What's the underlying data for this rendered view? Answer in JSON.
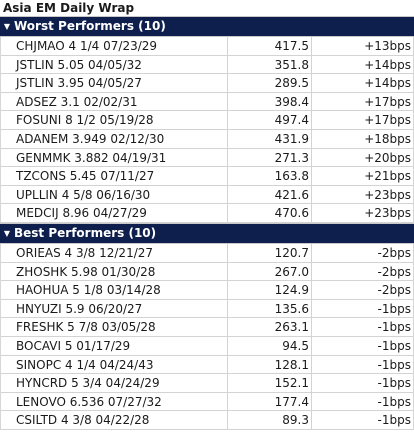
{
  "title": "Asia EM Daily Wrap",
  "sections": [
    {
      "label": "Worst Performers (10)",
      "rows": [
        {
          "name": "CHJMAO 4 1/4 07/23/29",
          "price": "417.5",
          "change": "+13bps"
        },
        {
          "name": "JSTLIN 5.05 04/05/32",
          "price": "351.8",
          "change": "+14bps"
        },
        {
          "name": "JSTLIN 3.95 04/05/27",
          "price": "289.5",
          "change": "+14bps"
        },
        {
          "name": "ADSEZ 3.1 02/02/31",
          "price": "398.4",
          "change": "+17bps"
        },
        {
          "name": "FOSUNI 8 1/2 05/19/28",
          "price": "497.4",
          "change": "+17bps"
        },
        {
          "name": "ADANEM 3.949 02/12/30",
          "price": "431.9",
          "change": "+18bps"
        },
        {
          "name": "GENMMK 3.882 04/19/31",
          "price": "271.3",
          "change": "+20bps"
        },
        {
          "name": "TZCONS 5.45 07/11/27",
          "price": "163.8",
          "change": "+21bps"
        },
        {
          "name": "UPLLIN 4 5/8 06/16/30",
          "price": "421.6",
          "change": "+23bps"
        },
        {
          "name": "MEDCIJ 8.96 04/27/29",
          "price": "470.6",
          "change": "+23bps"
        }
      ]
    },
    {
      "label": "Best Performers (10)",
      "rows": [
        {
          "name": "ORIEAS 4 3/8 12/21/27",
          "price": "120.7",
          "change": "-2bps"
        },
        {
          "name": "ZHOSHK 5.98 01/30/28",
          "price": "267.0",
          "change": "-2bps"
        },
        {
          "name": "HAOHUA 5 1/8 03/14/28",
          "price": "124.9",
          "change": "-2bps"
        },
        {
          "name": "HNYUZI 5.9 06/20/27",
          "price": "135.6",
          "change": "-1bps"
        },
        {
          "name": "FRESHK 5 7/8 03/05/28",
          "price": "263.1",
          "change": "-1bps"
        },
        {
          "name": "BOCAVI 5 01/17/29",
          "price": "94.5",
          "change": "-1bps"
        },
        {
          "name": "SINOPC 4 1/4 04/24/43",
          "price": "128.1",
          "change": "-1bps"
        },
        {
          "name": "HYNCRD 5 3/4 04/24/29",
          "price": "152.1",
          "change": "-1bps"
        },
        {
          "name": "LENOVO 6.536 07/27/32",
          "price": "177.4",
          "change": "-1bps"
        },
        {
          "name": "CSILTD 4 3/8 04/22/28",
          "price": "89.3",
          "change": "-1bps"
        }
      ]
    }
  ]
}
